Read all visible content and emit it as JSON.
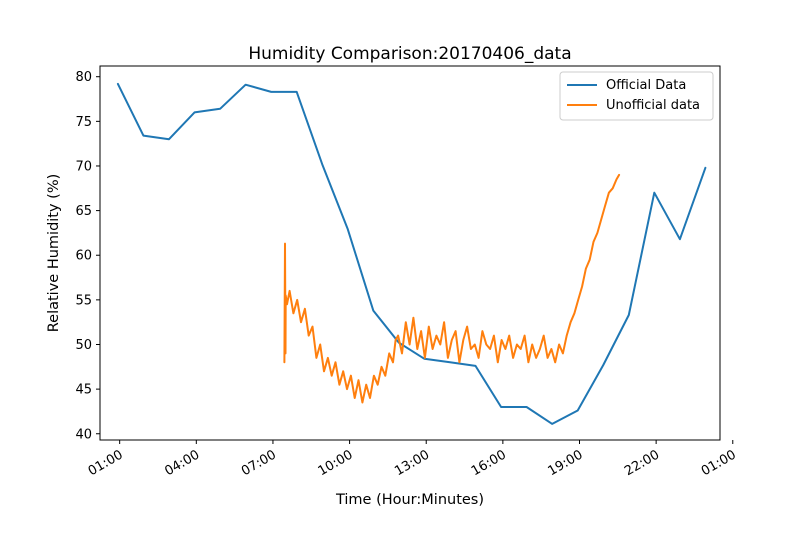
{
  "chart_data": {
    "type": "line",
    "title": "Humidity Comparison:20170406_data",
    "xlabel": "Time (Hour:Minutes)",
    "ylabel": "Relative Humidity (%)",
    "x_unit": "hours since midnight",
    "xlim": [
      0.23,
      24.5
    ],
    "ylim": [
      39.3,
      81.2
    ],
    "x_ticks": [
      {
        "value": 1,
        "label": "01:00"
      },
      {
        "value": 4,
        "label": "04:00"
      },
      {
        "value": 7,
        "label": "07:00"
      },
      {
        "value": 10,
        "label": "10:00"
      },
      {
        "value": 13,
        "label": "13:00"
      },
      {
        "value": 16,
        "label": "16:00"
      },
      {
        "value": 19,
        "label": "19:00"
      },
      {
        "value": 22,
        "label": "22:00"
      },
      {
        "value": 25,
        "label": "01:00"
      }
    ],
    "y_ticks": [
      40,
      45,
      50,
      55,
      60,
      65,
      70,
      75,
      80
    ],
    "grid": false,
    "legend_position": "top-right",
    "series": [
      {
        "name": "Official Data",
        "color": "#1f77b4",
        "x": [
          0.93,
          1.93,
          2.93,
          3.93,
          4.93,
          5.93,
          6.93,
          7.93,
          8.93,
          9.93,
          10.93,
          11.93,
          12.93,
          13.93,
          14.93,
          15.93,
          16.93,
          17.93,
          18.93,
          19.93,
          20.93,
          21.93,
          22.93,
          23.93
        ],
        "y": [
          79.2,
          73.4,
          73.0,
          76.0,
          76.4,
          79.1,
          78.3,
          78.3,
          70.2,
          62.9,
          53.8,
          50.2,
          48.4,
          48.0,
          47.6,
          43.0,
          43.0,
          41.1,
          42.6,
          47.7,
          53.3,
          67.0,
          61.8,
          69.8
        ]
      },
      {
        "name": "Unofficial data",
        "color": "#ff7f0e",
        "x": [
          7.45,
          7.47,
          7.49,
          7.5,
          7.55,
          7.65,
          7.8,
          7.95,
          8.1,
          8.25,
          8.4,
          8.55,
          8.7,
          8.85,
          9.0,
          9.15,
          9.3,
          9.45,
          9.6,
          9.75,
          9.9,
          10.05,
          10.2,
          10.35,
          10.5,
          10.65,
          10.8,
          10.95,
          11.1,
          11.25,
          11.4,
          11.55,
          11.7,
          11.8,
          11.9,
          12.05,
          12.2,
          12.35,
          12.5,
          12.65,
          12.8,
          12.95,
          13.1,
          13.25,
          13.4,
          13.55,
          13.7,
          13.85,
          14.0,
          14.15,
          14.3,
          14.45,
          14.6,
          14.75,
          14.9,
          15.05,
          15.2,
          15.35,
          15.5,
          15.65,
          15.8,
          15.95,
          16.1,
          16.25,
          16.4,
          16.55,
          16.7,
          16.85,
          17.0,
          17.15,
          17.3,
          17.45,
          17.6,
          17.75,
          17.9,
          18.05,
          18.2,
          18.35,
          18.5,
          18.65,
          18.8,
          18.95,
          19.1,
          19.25,
          19.4,
          19.55,
          19.7,
          19.85,
          20.0,
          20.15,
          20.3,
          20.45,
          20.55
        ],
        "y": [
          48.0,
          61.3,
          49.0,
          55.5,
          54.5,
          56.0,
          53.5,
          55.0,
          52.5,
          54.0,
          51.0,
          52.0,
          48.5,
          50.0,
          47.0,
          48.5,
          46.5,
          48.0,
          45.5,
          47.0,
          45.0,
          46.5,
          44.0,
          46.0,
          43.5,
          45.5,
          44.0,
          46.5,
          45.5,
          47.5,
          46.5,
          49.0,
          48.0,
          50.5,
          51.0,
          49.0,
          52.5,
          50.0,
          53.0,
          49.5,
          51.5,
          48.5,
          52.0,
          49.5,
          51.0,
          50.0,
          52.5,
          48.5,
          50.5,
          51.5,
          48.0,
          50.5,
          52.0,
          49.5,
          50.0,
          48.5,
          51.5,
          50.0,
          49.5,
          51.0,
          48.0,
          50.5,
          49.5,
          51.0,
          48.5,
          50.0,
          49.5,
          51.0,
          48.0,
          50.0,
          48.5,
          49.5,
          51.0,
          48.5,
          49.5,
          48.0,
          50.0,
          49.0,
          51.0,
          52.5,
          53.5,
          55.0,
          56.5,
          58.5,
          59.5,
          61.5,
          62.5,
          64.0,
          65.5,
          67.0,
          67.5,
          68.5,
          69.0
        ]
      }
    ]
  }
}
